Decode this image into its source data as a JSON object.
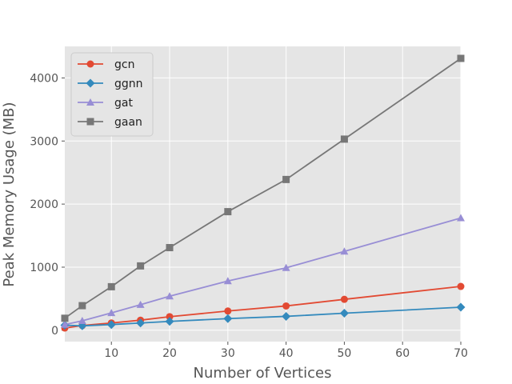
{
  "chart_data": {
    "type": "line",
    "title": "",
    "xlabel": "Number of Vertices",
    "ylabel": "Peak Memory Usage (MB)",
    "xlim": [
      2,
      70
    ],
    "ylim": [
      -180,
      4500
    ],
    "xticks": [
      10,
      20,
      30,
      40,
      50,
      60,
      70
    ],
    "yticks": [
      0,
      1000,
      2000,
      3000,
      4000
    ],
    "grid": true,
    "legend_position": "top-left",
    "series": [
      {
        "name": "gcn",
        "color": "#E24A33",
        "marker": "circle",
        "x": [
          2,
          5,
          10,
          15,
          20,
          30,
          40,
          50,
          70
        ],
        "values": [
          35,
          75,
          115,
          160,
          215,
          305,
          385,
          490,
          695
        ]
      },
      {
        "name": "ggnn",
        "color": "#348ABD",
        "marker": "diamond",
        "x": [
          2,
          5,
          10,
          15,
          20,
          30,
          40,
          50,
          70
        ],
        "values": [
          80,
          70,
          90,
          115,
          140,
          185,
          220,
          270,
          365
        ]
      },
      {
        "name": "gat",
        "color": "#988ED5",
        "marker": "triangle",
        "x": [
          2,
          5,
          10,
          15,
          20,
          30,
          40,
          50,
          70
        ],
        "values": [
          90,
          150,
          275,
          405,
          540,
          780,
          990,
          1250,
          1780
        ]
      },
      {
        "name": "gaan",
        "color": "#777777",
        "marker": "square",
        "x": [
          2,
          5,
          10,
          15,
          20,
          30,
          40,
          50,
          70
        ],
        "values": [
          190,
          390,
          690,
          1020,
          1310,
          1880,
          2390,
          3030,
          4310
        ]
      }
    ]
  }
}
